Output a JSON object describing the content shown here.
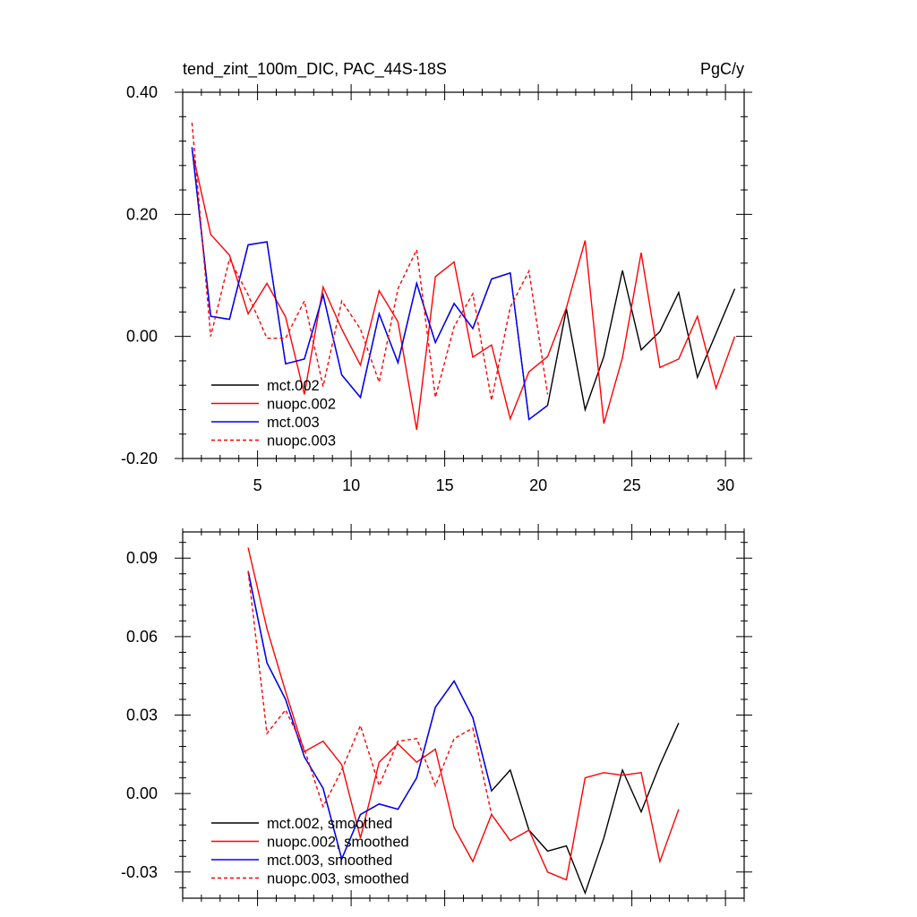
{
  "header": {
    "title": "tend_zint_100m_DIC, PAC_44S-18S",
    "units": "PgC/y"
  },
  "colors": {
    "mct002": "#000000",
    "nuopc002": "#ff0000",
    "mct003": "#0000ff",
    "nuopc003": "#ff0000"
  },
  "chart_data": [
    {
      "type": "line",
      "title": "tend_zint_100m_DIC, PAC_44S-18S",
      "units": "PgC/y",
      "xlim": [
        1,
        31
      ],
      "ylim": [
        -0.2,
        0.4
      ],
      "x_ticks": [
        5,
        10,
        15,
        20,
        25,
        30
      ],
      "x_tick_labels": [
        "5",
        "10",
        "15",
        "20",
        "25",
        "30"
      ],
      "y_ticks": [
        -0.2,
        0.0,
        0.2,
        0.4
      ],
      "y_tick_labels": [
        "-0.20",
        "0.00",
        "0.20",
        "0.40"
      ],
      "legend_position": "bottom-left",
      "series": [
        {
          "name": "mct.002",
          "color": "#000000",
          "dash": "solid",
          "x": [
            1.5,
            2.5,
            3.5,
            4.5,
            5.5,
            6.5,
            7.5,
            8.5,
            9.5,
            10.5,
            11.5,
            12.5,
            13.5,
            14.5,
            15.5,
            16.5,
            17.5,
            18.5,
            19.5,
            20.5,
            21.5,
            22.5,
            23.5,
            24.5,
            25.5,
            26.5,
            27.5,
            28.5,
            29.5,
            30.5
          ],
          "y": [
            0.31,
            0.033,
            0.028,
            0.15,
            0.155,
            -0.045,
            -0.037,
            0.068,
            -0.063,
            -0.1,
            0.037,
            -0.043,
            0.087,
            -0.01,
            0.054,
            0.013,
            0.094,
            0.104,
            -0.136,
            -0.113,
            0.045,
            -0.12,
            -0.033,
            0.108,
            -0.022,
            0.008,
            0.072,
            -0.067,
            0.005,
            0.078
          ]
        },
        {
          "name": "nuopc.002",
          "color": "#ff0000",
          "dash": "solid",
          "x": [
            1.5,
            2.5,
            3.5,
            4.5,
            5.5,
            6.5,
            7.5,
            8.5,
            9.5,
            10.5,
            11.5,
            12.5,
            13.5,
            14.5,
            15.5,
            16.5,
            17.5,
            18.5,
            19.5,
            20.5,
            21.5,
            22.5,
            23.5,
            24.5,
            25.5,
            26.5,
            27.5,
            28.5,
            29.5,
            30.5
          ],
          "y": [
            0.305,
            0.167,
            0.133,
            0.037,
            0.087,
            0.032,
            -0.095,
            0.081,
            0.012,
            -0.047,
            0.075,
            0.024,
            -0.153,
            0.098,
            0.122,
            -0.034,
            -0.014,
            -0.135,
            -0.058,
            -0.033,
            0.047,
            0.157,
            -0.143,
            -0.035,
            0.137,
            -0.051,
            -0.037,
            0.033,
            -0.085,
            0.0
          ]
        },
        {
          "name": "mct.003",
          "color": "#0000ff",
          "dash": "solid",
          "x": [
            1.5,
            2.5,
            3.5,
            4.5,
            5.5,
            6.5,
            7.5,
            8.5,
            9.5,
            10.5,
            11.5,
            12.5,
            13.5,
            14.5,
            15.5,
            16.5,
            17.5,
            18.5,
            19.5,
            20.5
          ],
          "y": [
            0.31,
            0.033,
            0.028,
            0.15,
            0.155,
            -0.045,
            -0.037,
            0.068,
            -0.063,
            -0.1,
            0.037,
            -0.043,
            0.087,
            -0.01,
            0.054,
            0.013,
            0.094,
            0.104,
            -0.136,
            -0.113
          ]
        },
        {
          "name": "nuopc.003",
          "color": "#ff0000",
          "dash": "dashed",
          "x": [
            1.5,
            2.5,
            3.5,
            4.5,
            5.5,
            6.5,
            7.5,
            8.5,
            9.5,
            10.5,
            11.5,
            12.5,
            13.5,
            14.5,
            15.5,
            16.5,
            17.5,
            18.5,
            19.5,
            20.5
          ],
          "y": [
            0.35,
            0.0,
            0.127,
            0.068,
            -0.003,
            -0.003,
            0.058,
            -0.082,
            0.058,
            0.012,
            -0.075,
            0.078,
            0.142,
            -0.1,
            0.016,
            0.07,
            -0.105,
            0.048,
            0.107,
            -0.095
          ]
        }
      ]
    },
    {
      "type": "line",
      "title": "",
      "xlim": [
        1,
        31
      ],
      "ylim": [
        -0.04,
        0.1
      ],
      "x_ticks": [
        5,
        10,
        15,
        20,
        25,
        30
      ],
      "x_tick_labels": [],
      "y_ticks": [
        -0.03,
        0.0,
        0.03,
        0.06,
        0.09
      ],
      "y_tick_labels": [
        "-0.03",
        "0.00",
        "0.03",
        "0.06",
        "0.09"
      ],
      "legend_position": "bottom-left",
      "series": [
        {
          "name": "mct.002, smoothed",
          "color": "#000000",
          "dash": "solid",
          "x": [
            4.5,
            5.5,
            6.5,
            7.5,
            8.5,
            9.5,
            10.5,
            11.5,
            12.5,
            13.5,
            14.5,
            15.5,
            16.5,
            17.5,
            18.5,
            19.5,
            20.5,
            21.5,
            22.5,
            23.5,
            24.5,
            25.5,
            26.5,
            27.5
          ],
          "y": [
            0.085,
            0.05,
            0.036,
            0.014,
            0.002,
            -0.025,
            -0.008,
            -0.004,
            -0.006,
            0.006,
            0.033,
            0.043,
            0.029,
            0.001,
            0.009,
            -0.014,
            -0.022,
            -0.02,
            -0.038,
            -0.017,
            0.009,
            -0.007,
            0.011,
            0.027
          ]
        },
        {
          "name": "nuopc.002, smoothed",
          "color": "#ff0000",
          "dash": "solid",
          "x": [
            4.5,
            5.5,
            6.5,
            7.5,
            8.5,
            9.5,
            10.5,
            11.5,
            12.5,
            13.5,
            14.5,
            15.5,
            16.5,
            17.5,
            18.5,
            19.5,
            20.5,
            21.5,
            22.5,
            23.5,
            24.5,
            25.5,
            26.5,
            27.5
          ],
          "y": [
            0.094,
            0.063,
            0.039,
            0.016,
            0.02,
            0.011,
            -0.017,
            0.012,
            0.019,
            0.012,
            0.017,
            -0.013,
            -0.026,
            -0.008,
            -0.018,
            -0.014,
            -0.03,
            -0.033,
            0.006,
            0.008,
            0.007,
            0.008,
            -0.026,
            -0.006
          ]
        },
        {
          "name": "mct.003, smoothed",
          "color": "#0000ff",
          "dash": "solid",
          "x": [
            4.5,
            5.5,
            6.5,
            7.5,
            8.5,
            9.5,
            10.5,
            11.5,
            12.5,
            13.5,
            14.5,
            15.5,
            16.5,
            17.5
          ],
          "y": [
            0.085,
            0.05,
            0.036,
            0.014,
            0.002,
            -0.025,
            -0.008,
            -0.004,
            -0.006,
            0.006,
            0.033,
            0.043,
            0.029,
            0.001
          ]
        },
        {
          "name": "nuopc.003, smoothed",
          "color": "#ff0000",
          "dash": "dashed",
          "x": [
            4.5,
            5.5,
            6.5,
            7.5,
            8.5,
            9.5,
            10.5,
            11.5,
            12.5,
            13.5,
            14.5,
            15.5,
            16.5,
            17.5
          ],
          "y": [
            0.085,
            0.023,
            0.032,
            0.017,
            -0.005,
            0.009,
            0.026,
            0.003,
            0.02,
            0.021,
            0.003,
            0.021,
            0.025,
            -0.008
          ]
        }
      ]
    }
  ]
}
